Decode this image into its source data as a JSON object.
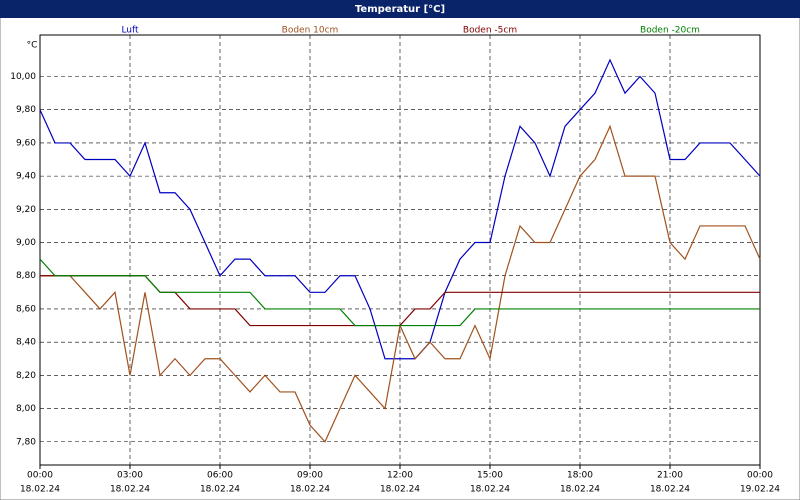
{
  "chart_data": {
    "type": "line",
    "title": "Temperatur [°C]",
    "y_unit": "°C",
    "x": [
      0,
      0.5,
      1,
      1.5,
      2,
      2.5,
      3,
      3.5,
      4,
      4.5,
      5,
      5.5,
      6,
      6.5,
      7,
      7.5,
      8,
      8.5,
      9,
      9.5,
      10,
      10.5,
      11,
      11.5,
      12,
      12.5,
      13,
      13.5,
      14,
      14.5,
      15,
      15.5,
      16,
      16.5,
      17,
      17.5,
      18,
      18.5,
      19,
      19.5,
      20,
      20.5,
      21,
      21.5,
      22,
      22.5,
      23,
      23.5,
      24
    ],
    "series": [
      {
        "name": "Luft",
        "color": "#0000c0",
        "values": [
          9.8,
          9.6,
          9.6,
          9.5,
          9.5,
          9.5,
          9.4,
          9.6,
          9.3,
          9.3,
          9.2,
          9.0,
          8.8,
          8.9,
          8.9,
          8.8,
          8.8,
          8.8,
          8.7,
          8.7,
          8.8,
          8.8,
          8.6,
          8.3,
          8.3,
          8.3,
          8.4,
          8.7,
          8.9,
          9.0,
          9.0,
          9.4,
          9.7,
          9.6,
          9.4,
          9.7,
          9.8,
          9.9,
          10.1,
          9.9,
          10.0,
          9.9,
          9.5,
          9.5,
          9.6,
          9.6,
          9.6,
          9.5,
          9.4
        ]
      },
      {
        "name": "Boden 10cm",
        "color": "#a0521e",
        "values": [
          8.8,
          8.8,
          8.8,
          8.7,
          8.6,
          8.7,
          8.2,
          8.7,
          8.2,
          8.3,
          8.2,
          8.3,
          8.3,
          8.2,
          8.1,
          8.2,
          8.1,
          8.1,
          7.9,
          7.8,
          8.0,
          8.2,
          8.1,
          8.0,
          8.5,
          8.3,
          8.4,
          8.3,
          8.3,
          8.5,
          8.3,
          8.8,
          9.1,
          9.0,
          9.0,
          9.2,
          9.4,
          9.5,
          9.7,
          9.4,
          9.4,
          9.4,
          9.0,
          8.9,
          9.1,
          9.1,
          9.1,
          9.1,
          8.9
        ]
      },
      {
        "name": "Boden -5cm",
        "color": "#800000",
        "values": [
          8.8,
          8.8,
          8.8,
          8.8,
          8.8,
          8.8,
          8.8,
          8.8,
          8.7,
          8.7,
          8.6,
          8.6,
          8.6,
          8.6,
          8.5,
          8.5,
          8.5,
          8.5,
          8.5,
          8.5,
          8.5,
          8.5,
          8.5,
          8.5,
          8.5,
          8.6,
          8.6,
          8.7,
          8.7,
          8.7,
          8.7,
          8.7,
          8.7,
          8.7,
          8.7,
          8.7,
          8.7,
          8.7,
          8.7,
          8.7,
          8.7,
          8.7,
          8.7,
          8.7,
          8.7,
          8.7,
          8.7,
          8.7,
          8.7
        ]
      },
      {
        "name": "Boden -20cm",
        "color": "#008000",
        "values": [
          8.9,
          8.8,
          8.8,
          8.8,
          8.8,
          8.8,
          8.8,
          8.8,
          8.7,
          8.7,
          8.7,
          8.7,
          8.7,
          8.7,
          8.7,
          8.6,
          8.6,
          8.6,
          8.6,
          8.6,
          8.6,
          8.5,
          8.5,
          8.5,
          8.5,
          8.5,
          8.5,
          8.5,
          8.5,
          8.6,
          8.6,
          8.6,
          8.6,
          8.6,
          8.6,
          8.6,
          8.6,
          8.6,
          8.6,
          8.6,
          8.6,
          8.6,
          8.6,
          8.6,
          8.6,
          8.6,
          8.6,
          8.6,
          8.6
        ]
      }
    ],
    "xlim": [
      0,
      24
    ],
    "xticks": [
      {
        "value": 0,
        "label": "00:00"
      },
      {
        "value": 3,
        "label": "03:00"
      },
      {
        "value": 6,
        "label": "06:00"
      },
      {
        "value": 9,
        "label": "09:00"
      },
      {
        "value": 12,
        "label": "12:00"
      },
      {
        "value": 15,
        "label": "15:00"
      },
      {
        "value": 18,
        "label": "18:00"
      },
      {
        "value": 21,
        "label": "21:00"
      },
      {
        "value": 24,
        "label": "00:00"
      }
    ],
    "xtick_dates": [
      "18.02.24",
      "18.02.24",
      "18.02.24",
      "18.02.24",
      "18.02.24",
      "18.02.24",
      "18.02.24",
      "18.02.24",
      "19.02.24"
    ],
    "ylim": [
      7.66,
      10.25
    ],
    "yticks": [
      {
        "value": 7.8,
        "label": "7,80"
      },
      {
        "value": 8.0,
        "label": "8,00"
      },
      {
        "value": 8.2,
        "label": "8,20"
      },
      {
        "value": 8.4,
        "label": "8,40"
      },
      {
        "value": 8.6,
        "label": "8,60"
      },
      {
        "value": 8.8,
        "label": "8,80"
      },
      {
        "value": 9.0,
        "label": "9,00"
      },
      {
        "value": 9.2,
        "label": "9,20"
      },
      {
        "value": 9.4,
        "label": "9,40"
      },
      {
        "value": 9.6,
        "label": "9,60"
      },
      {
        "value": 9.8,
        "label": "9,80"
      },
      {
        "value": 10.0,
        "label": "10,00"
      }
    ],
    "grid": true
  }
}
